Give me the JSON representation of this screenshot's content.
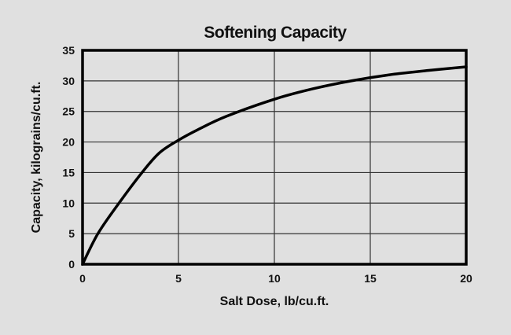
{
  "chart_data": {
    "type": "line",
    "title": "Softening Capacity",
    "xlabel": "Salt Dose, lb/cu.ft.",
    "ylabel": "Capacity, kilograins/cu.ft.",
    "xlim": [
      0,
      20
    ],
    "ylim": [
      0,
      35
    ],
    "x_ticks": [
      0,
      5,
      10,
      15,
      20
    ],
    "y_ticks": [
      0,
      5,
      10,
      15,
      20,
      25,
      30,
      35
    ],
    "grid": true,
    "legend": null,
    "series": [
      {
        "name": "Capacity",
        "x": [
          0,
          0.8,
          1.9,
          3.1,
          4.0,
          5.0,
          6.0,
          7.5,
          10.0,
          12.0,
          14.0,
          16.0,
          18.0,
          20.0
        ],
        "y": [
          0,
          5,
          10,
          15,
          18.2,
          20.3,
          22.0,
          24.2,
          27.0,
          28.7,
          30.0,
          31.0,
          31.7,
          32.3
        ]
      }
    ]
  }
}
